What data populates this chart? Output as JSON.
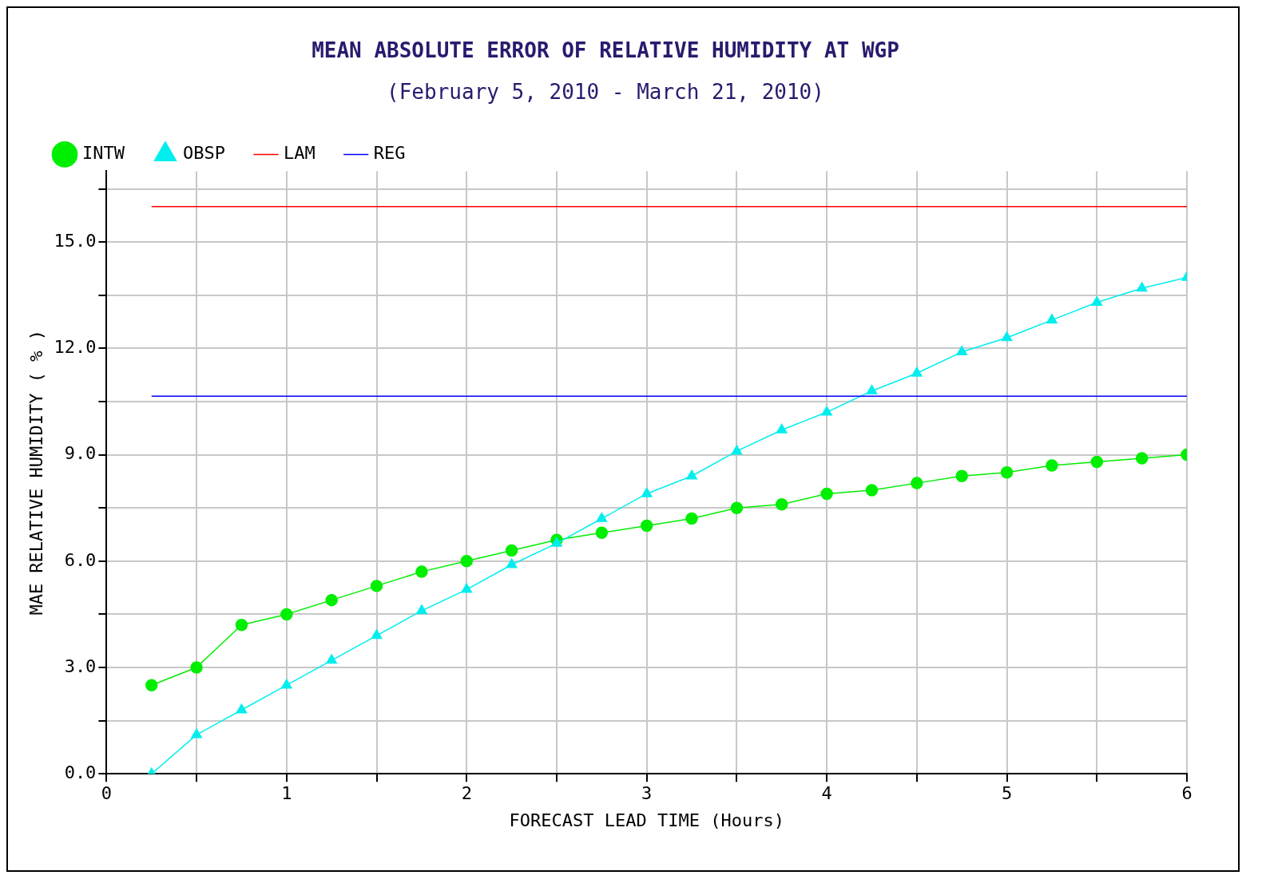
{
  "chart_data": {
    "type": "line",
    "title": "MEAN ABSOLUTE ERROR OF RELATIVE HUMIDITY AT WGP",
    "subtitle": "(February 5, 2010 - March 21, 2010)",
    "xlabel": "FORECAST LEAD TIME (Hours)",
    "ylabel": "MAE RELATIVE HUMIDITY ( % )",
    "xlim": [
      0,
      6
    ],
    "ylim": [
      0,
      17
    ],
    "xticks": [
      0,
      {
        "value": 0.5,
        "label": null
      },
      1,
      {
        "value": 1.5,
        "label": null
      },
      2,
      {
        "value": 2.5,
        "label": null
      },
      3,
      {
        "value": 3.5,
        "label": null
      },
      4,
      {
        "value": 4.5,
        "label": null
      },
      5,
      {
        "value": 5.5,
        "label": null
      },
      6
    ],
    "yticks": [
      {
        "value": 0,
        "label": "0.0"
      },
      {
        "value": 1.5,
        "label": null
      },
      {
        "value": 3,
        "label": "3.0"
      },
      {
        "value": 4.5,
        "label": null
      },
      {
        "value": 6,
        "label": "6.0"
      },
      {
        "value": 7.5,
        "label": null
      },
      {
        "value": 9,
        "label": "9.0"
      },
      {
        "value": 10.5,
        "label": null
      },
      {
        "value": 12,
        "label": "12.0"
      },
      {
        "value": 13.5,
        "label": null
      },
      {
        "value": 15,
        "label": "15.0"
      },
      {
        "value": 16.5,
        "label": null
      }
    ],
    "grid": true,
    "legend": "top",
    "line_style": "solid",
    "series": [
      {
        "name": "INTW",
        "color": "#00ee00",
        "marker": "circle",
        "x": [
          0.25,
          0.5,
          0.75,
          1,
          1.25,
          1.5,
          1.75,
          2,
          2.25,
          2.5,
          2.75,
          3,
          3.25,
          3.5,
          3.75,
          4,
          4.25,
          4.5,
          4.75,
          5,
          5.25,
          5.5,
          5.75,
          6
        ],
        "values": [
          2.5,
          3.0,
          4.2,
          4.5,
          4.9,
          5.3,
          5.7,
          6.0,
          6.3,
          6.6,
          6.8,
          7.0,
          7.2,
          7.5,
          7.6,
          7.9,
          8.0,
          8.2,
          8.4,
          8.5,
          8.7,
          8.8,
          8.9,
          9.0
        ]
      },
      {
        "name": "OBSP",
        "color": "#00eeee",
        "marker": "triangle",
        "x": [
          0.25,
          0.5,
          0.75,
          1,
          1.25,
          1.5,
          1.75,
          2,
          2.25,
          2.5,
          2.75,
          3,
          3.25,
          3.5,
          3.75,
          4,
          4.25,
          4.5,
          4.75,
          5,
          5.25,
          5.5,
          5.75,
          6
        ],
        "values": [
          0.0,
          1.1,
          1.8,
          2.5,
          3.2,
          3.9,
          4.6,
          5.2,
          5.9,
          6.5,
          7.2,
          7.9,
          8.4,
          9.1,
          9.7,
          10.2,
          10.8,
          11.3,
          11.9,
          12.3,
          12.8,
          13.3,
          13.7,
          14.0
        ]
      },
      {
        "name": "LAM",
        "color": "#ff0000",
        "marker": "none",
        "x": [
          0.25,
          6
        ],
        "values": [
          16.0,
          16.0
        ]
      },
      {
        "name": "REG",
        "color": "#0000ff",
        "marker": "none",
        "x": [
          0.25,
          6
        ],
        "values": [
          10.65,
          10.65
        ]
      }
    ]
  }
}
